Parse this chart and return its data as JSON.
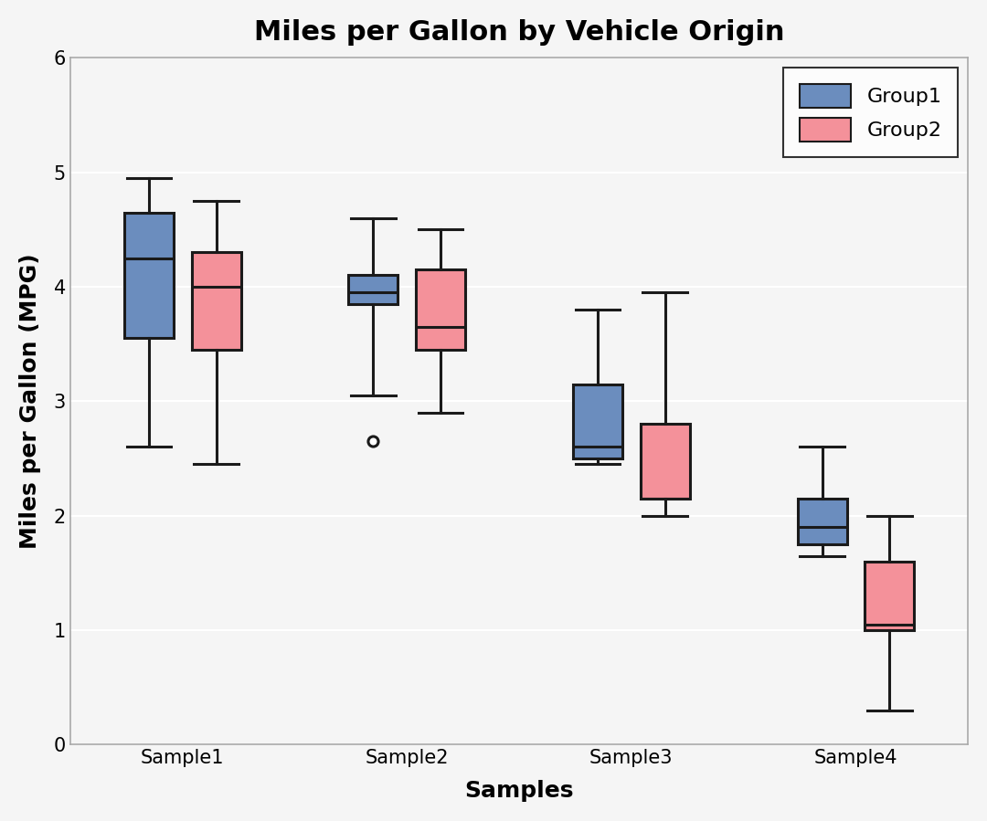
{
  "title": "Miles per Gallon by Vehicle Origin",
  "xlabel": "Samples",
  "ylabel": "Miles per Gallon (MPG)",
  "categories": [
    "Sample1",
    "Sample2",
    "Sample3",
    "Sample4"
  ],
  "ylim": [
    0,
    6
  ],
  "yticks": [
    0,
    1,
    2,
    3,
    4,
    5,
    6
  ],
  "group1_color": "#6B8DBE",
  "group2_color": "#F4919A",
  "group1_edge": "#1a1a1a",
  "group2_edge": "#1a1a1a",
  "group1_label": "Group1",
  "group2_label": "Group2",
  "title_fontsize": 22,
  "label_fontsize": 18,
  "tick_fontsize": 15,
  "legend_fontsize": 16,
  "background_color": "#f5f5f5",
  "axes_background": "#f5f5f5",
  "grid_color": "#ffffff",
  "boxes": {
    "group1": [
      {
        "whislo": 2.6,
        "q1": 3.55,
        "med": 4.25,
        "q3": 4.65,
        "whishi": 4.95,
        "fliers": []
      },
      {
        "whislo": 3.05,
        "q1": 3.85,
        "med": 3.95,
        "q3": 4.1,
        "whishi": 4.6,
        "fliers": [
          2.65
        ]
      },
      {
        "whislo": 2.45,
        "q1": 2.5,
        "med": 2.6,
        "q3": 3.15,
        "whishi": 3.8,
        "fliers": []
      },
      {
        "whislo": 1.65,
        "q1": 1.75,
        "med": 1.9,
        "q3": 2.15,
        "whishi": 2.6,
        "fliers": []
      }
    ],
    "group2": [
      {
        "whislo": 2.45,
        "q1": 3.45,
        "med": 4.0,
        "q3": 4.3,
        "whishi": 4.75,
        "fliers": []
      },
      {
        "whislo": 2.9,
        "q1": 3.45,
        "med": 3.65,
        "q3": 4.15,
        "whishi": 4.5,
        "fliers": []
      },
      {
        "whislo": 2.0,
        "q1": 2.15,
        "med": 2.15,
        "q3": 2.8,
        "whishi": 3.95,
        "fliers": []
      },
      {
        "whislo": 0.3,
        "q1": 1.0,
        "med": 1.05,
        "q3": 1.6,
        "whishi": 2.0,
        "fliers": []
      }
    ]
  }
}
